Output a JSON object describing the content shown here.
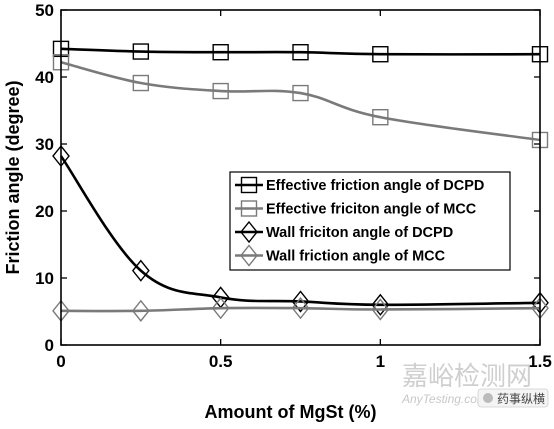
{
  "watermark": {
    "cn_text": "嘉峪检测网",
    "en_text": "AnyTesting.com",
    "badge_text": "药事纵横"
  },
  "chart_data": {
    "type": "line",
    "title": "",
    "xlabel": "Amount of MgSt (%)",
    "ylabel": "Friction angle (degree)",
    "xlim": [
      0,
      1.5
    ],
    "ylim": [
      0,
      50
    ],
    "xticks": [
      0,
      0.5,
      1,
      1.5
    ],
    "xtick_labels": [
      "0",
      "0.5",
      "1",
      "1.5"
    ],
    "yticks": [
      0,
      10,
      20,
      30,
      40,
      50
    ],
    "ytick_labels": [
      "0",
      "10",
      "20",
      "30",
      "40",
      "50"
    ],
    "grid": false,
    "legend_position": "center-right",
    "x": [
      0,
      0.25,
      0.5,
      0.75,
      1,
      1.5
    ],
    "series": [
      {
        "name": "Effective friction angle of DCPD",
        "marker": "square",
        "color": "#000000",
        "values": [
          44.2,
          43.8,
          43.7,
          43.7,
          43.4,
          43.4
        ]
      },
      {
        "name": "Effective friciton angle of MCC",
        "marker": "square",
        "color": "#7a7a7a",
        "values": [
          42.2,
          39.1,
          37.9,
          37.6,
          34.0,
          30.6
        ]
      },
      {
        "name": "Wall friciton angle of DCPD",
        "marker": "diamond",
        "color": "#000000",
        "values": [
          28.2,
          11.1,
          7.1,
          6.5,
          6.0,
          6.3
        ]
      },
      {
        "name": "Wall friction angle of MCC",
        "marker": "diamond",
        "color": "#7a7a7a",
        "values": [
          5.1,
          5.1,
          5.5,
          5.5,
          5.3,
          5.5
        ]
      }
    ]
  }
}
